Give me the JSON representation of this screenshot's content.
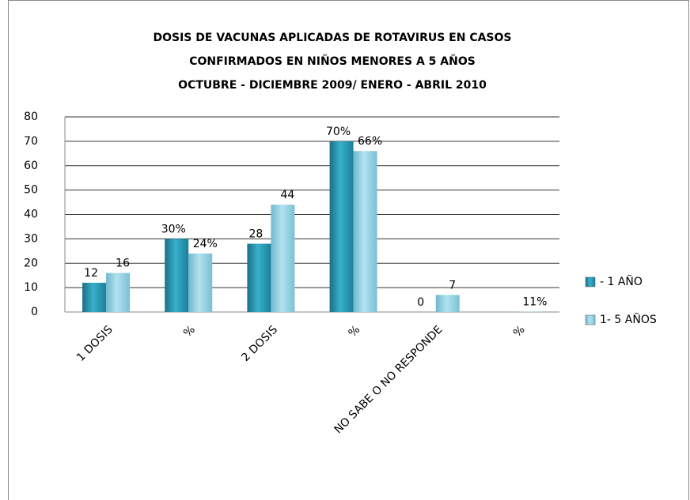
{
  "chart_data": {
    "type": "bar",
    "title": [
      "DOSIS DE VACUNAS APLICADAS DE ROTAVIRUS EN CASOS",
      "CONFIRMADOS   EN NIÑOS MENORES  A 5 AÑOS",
      "OCTUBRE - DICIEMBRE 2009/ ENERO - ABRIL 2010"
    ],
    "categories": [
      "1 DOSIS",
      "%",
      "2 DOSIS",
      "%",
      "NO SABE O NO RESPONDE",
      "%"
    ],
    "series": [
      {
        "name": "- 1 AÑO",
        "color": "#2596b2",
        "values": [
          12,
          30,
          28,
          70,
          0,
          null
        ],
        "value_labels": [
          "12",
          "30%",
          "28",
          "70%",
          "0",
          null
        ]
      },
      {
        "name": "1- 5 AÑOS",
        "color": "#8ccfe2",
        "values": [
          16,
          24,
          44,
          66,
          7,
          0.11
        ],
        "value_labels": [
          "16",
          "24%",
          "44",
          "66%",
          "7",
          "11%"
        ]
      }
    ],
    "ylim": [
      0,
      80
    ],
    "yticks": [
      0,
      10,
      20,
      30,
      40,
      50,
      60,
      70,
      80
    ],
    "grid": true,
    "legend": "right"
  }
}
